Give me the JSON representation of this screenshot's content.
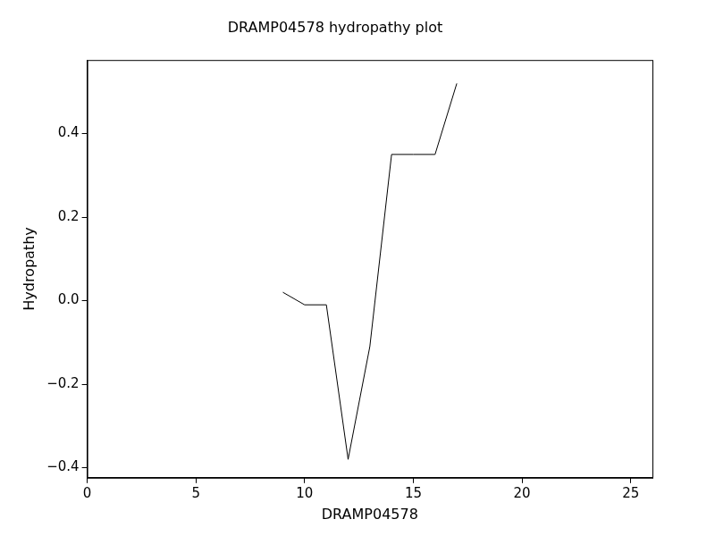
{
  "chart_data": {
    "type": "line",
    "title": "DRAMP04578 hydropathy plot",
    "x_label": "DRAMP04578",
    "y_label": "Hydropathy",
    "x": [
      9,
      10,
      11,
      12,
      13,
      14,
      15,
      16,
      17
    ],
    "values": [
      0.02,
      -0.01,
      -0.01,
      -0.38,
      -0.11,
      0.35,
      0.35,
      0.35,
      0.52
    ],
    "color": "#000000",
    "xlim": [
      0,
      26
    ],
    "xticks": [
      0,
      5,
      10,
      15,
      20,
      25
    ],
    "ylim": [
      -0.424,
      0.576
    ],
    "yticks": [
      {
        "value": -0.4,
        "label": "−0.4"
      },
      {
        "value": -0.2,
        "label": "−0.2"
      },
      {
        "value": 0,
        "label": "0.0"
      },
      0.2,
      0.4
    ],
    "grid": false
  }
}
